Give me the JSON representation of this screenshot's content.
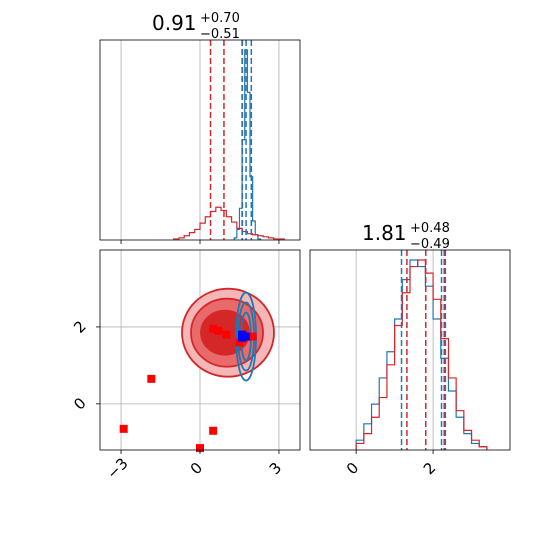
{
  "colors": {
    "red": "#d62728",
    "blue": "#1f77b4",
    "marker_red": "#ff0000",
    "marker_blue": "#0000ff",
    "grid": "#b0b0b0",
    "fill_outer": "#f4b6b6",
    "fill_mid": "#e86a6a",
    "fill_inner": "#d62728"
  },
  "chart_data": {
    "type": "corner",
    "panels": [
      {
        "name": "hist-param-1",
        "title_value": "0.91",
        "title_plus": "+0.70",
        "title_minus": "−0.51",
        "xlim": [
          -3.8,
          3.8
        ],
        "red_quantiles": [
          0.4,
          0.91,
          1.61
        ],
        "blue_quantiles": [
          1.6,
          1.75,
          1.95
        ],
        "red_hist": {
          "bins": [
            -1.0,
            -0.8,
            -0.6,
            -0.4,
            -0.2,
            0.0,
            0.2,
            0.4,
            0.6,
            0.8,
            1.0,
            1.2,
            1.4,
            1.6,
            1.8,
            2.0,
            2.2,
            2.4,
            2.6,
            2.8,
            3.0,
            3.2
          ],
          "counts": [
            1,
            2,
            4,
            7,
            10,
            16,
            22,
            27,
            31,
            28,
            22,
            17,
            11,
            8,
            6,
            5,
            4,
            3,
            2,
            1,
            1
          ]
        },
        "blue_hist": {
          "bins": [
            1.3,
            1.4,
            1.5,
            1.6,
            1.7,
            1.8,
            1.9,
            2.0,
            2.1,
            2.2,
            2.3
          ],
          "counts": [
            2,
            10,
            30,
            95,
            180,
            140,
            60,
            18,
            5,
            1
          ]
        }
      },
      {
        "name": "hist-param-2",
        "title_value": "1.81",
        "title_plus": "+0.48",
        "title_minus": "−0.49",
        "xlim": [
          -1.2,
          4.0
        ],
        "red_quantiles": [
          1.32,
          1.81,
          2.29
        ],
        "blue_quantiles": [
          1.18,
          2.22,
          2.32
        ],
        "red_hist": {
          "bins": [
            0.0,
            0.2,
            0.4,
            0.6,
            0.8,
            1.0,
            1.2,
            1.4,
            1.6,
            1.8,
            2.0,
            2.2,
            2.4,
            2.6,
            2.8,
            3.0,
            3.2,
            3.4
          ],
          "counts": [
            2,
            5,
            10,
            16,
            26,
            38,
            48,
            56,
            58,
            54,
            46,
            34,
            22,
            12,
            6,
            3,
            1
          ]
        },
        "blue_hist": {
          "bins": [
            0.0,
            0.2,
            0.4,
            0.6,
            0.8,
            1.0,
            1.2,
            1.4,
            1.6,
            1.8,
            2.0,
            2.2,
            2.4,
            2.6,
            2.8,
            3.0,
            3.2,
            3.4
          ],
          "counts": [
            3,
            8,
            14,
            22,
            30,
            40,
            52,
            58,
            56,
            50,
            40,
            28,
            18,
            10,
            5,
            2,
            1
          ]
        }
      }
    ],
    "scatter_panel": {
      "xlim": [
        -3.8,
        3.8
      ],
      "ylim": [
        -1.2,
        4.0
      ],
      "red_markers": [
        [
          -2.9,
          -0.65
        ],
        [
          -1.85,
          0.65
        ],
        [
          0.0,
          -1.15
        ],
        [
          0.5,
          -0.7
        ],
        [
          0.5,
          1.95
        ],
        [
          0.7,
          1.9
        ],
        [
          1.0,
          1.8
        ],
        [
          1.5,
          1.6
        ],
        [
          2.0,
          1.75
        ]
      ],
      "blue_markers": [
        [
          1.6,
          1.72
        ],
        [
          1.75,
          1.75
        ],
        [
          1.6,
          1.8
        ]
      ]
    },
    "x_ticks_left": [
      "−3",
      "0",
      "3"
    ],
    "x_tick_values_left": [
      -3,
      0,
      3
    ],
    "y_ticks_left": [
      "0",
      "2"
    ],
    "y_tick_values_left": [
      0,
      2
    ],
    "x_ticks_right": [
      "0",
      "2"
    ],
    "x_tick_values_right": [
      0,
      2
    ],
    "grid": true,
    "xlabel": "",
    "ylabel": ""
  }
}
